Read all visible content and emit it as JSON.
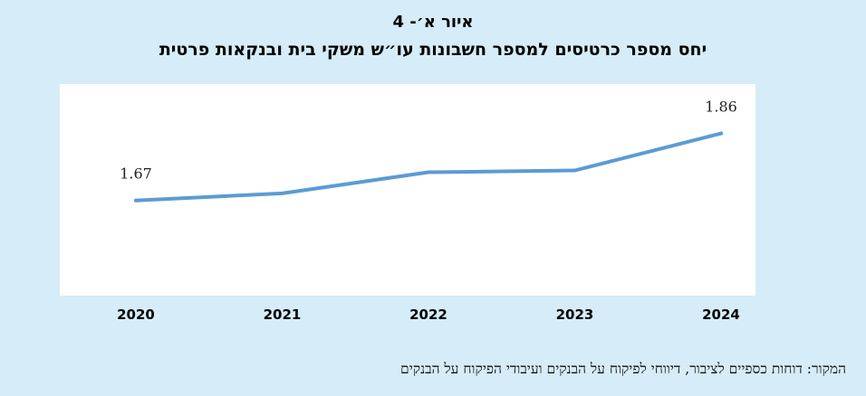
{
  "figure_label": "איור א׳- 4",
  "source_text": "המקור: דוחות כספיים לציבור, דיווחי לפיקוח על הבנקים ועיבודי הפיקוח על הבנקים",
  "chart_data": {
    "type": "line",
    "title": "יחס מספר כרטיסים למספר חשבונות עו״ש משקי בית ובנקאות פרטית",
    "xlabel": "",
    "ylabel": "",
    "categories": [
      "2020",
      "2021",
      "2022",
      "2023",
      "2024"
    ],
    "series": [
      {
        "values": [
          1.67,
          1.69,
          1.75,
          1.755,
          1.86
        ],
        "color": "#5b9bd5"
      }
    ],
    "data_labels": [
      {
        "index": 0,
        "text": "1.67"
      },
      {
        "index": 4,
        "text": "1.86"
      }
    ],
    "ylim": [
      1.4,
      2.0
    ],
    "grid": false,
    "legend": "none",
    "plot_background": "#ffffff",
    "page_background": "#d6ecf8"
  }
}
